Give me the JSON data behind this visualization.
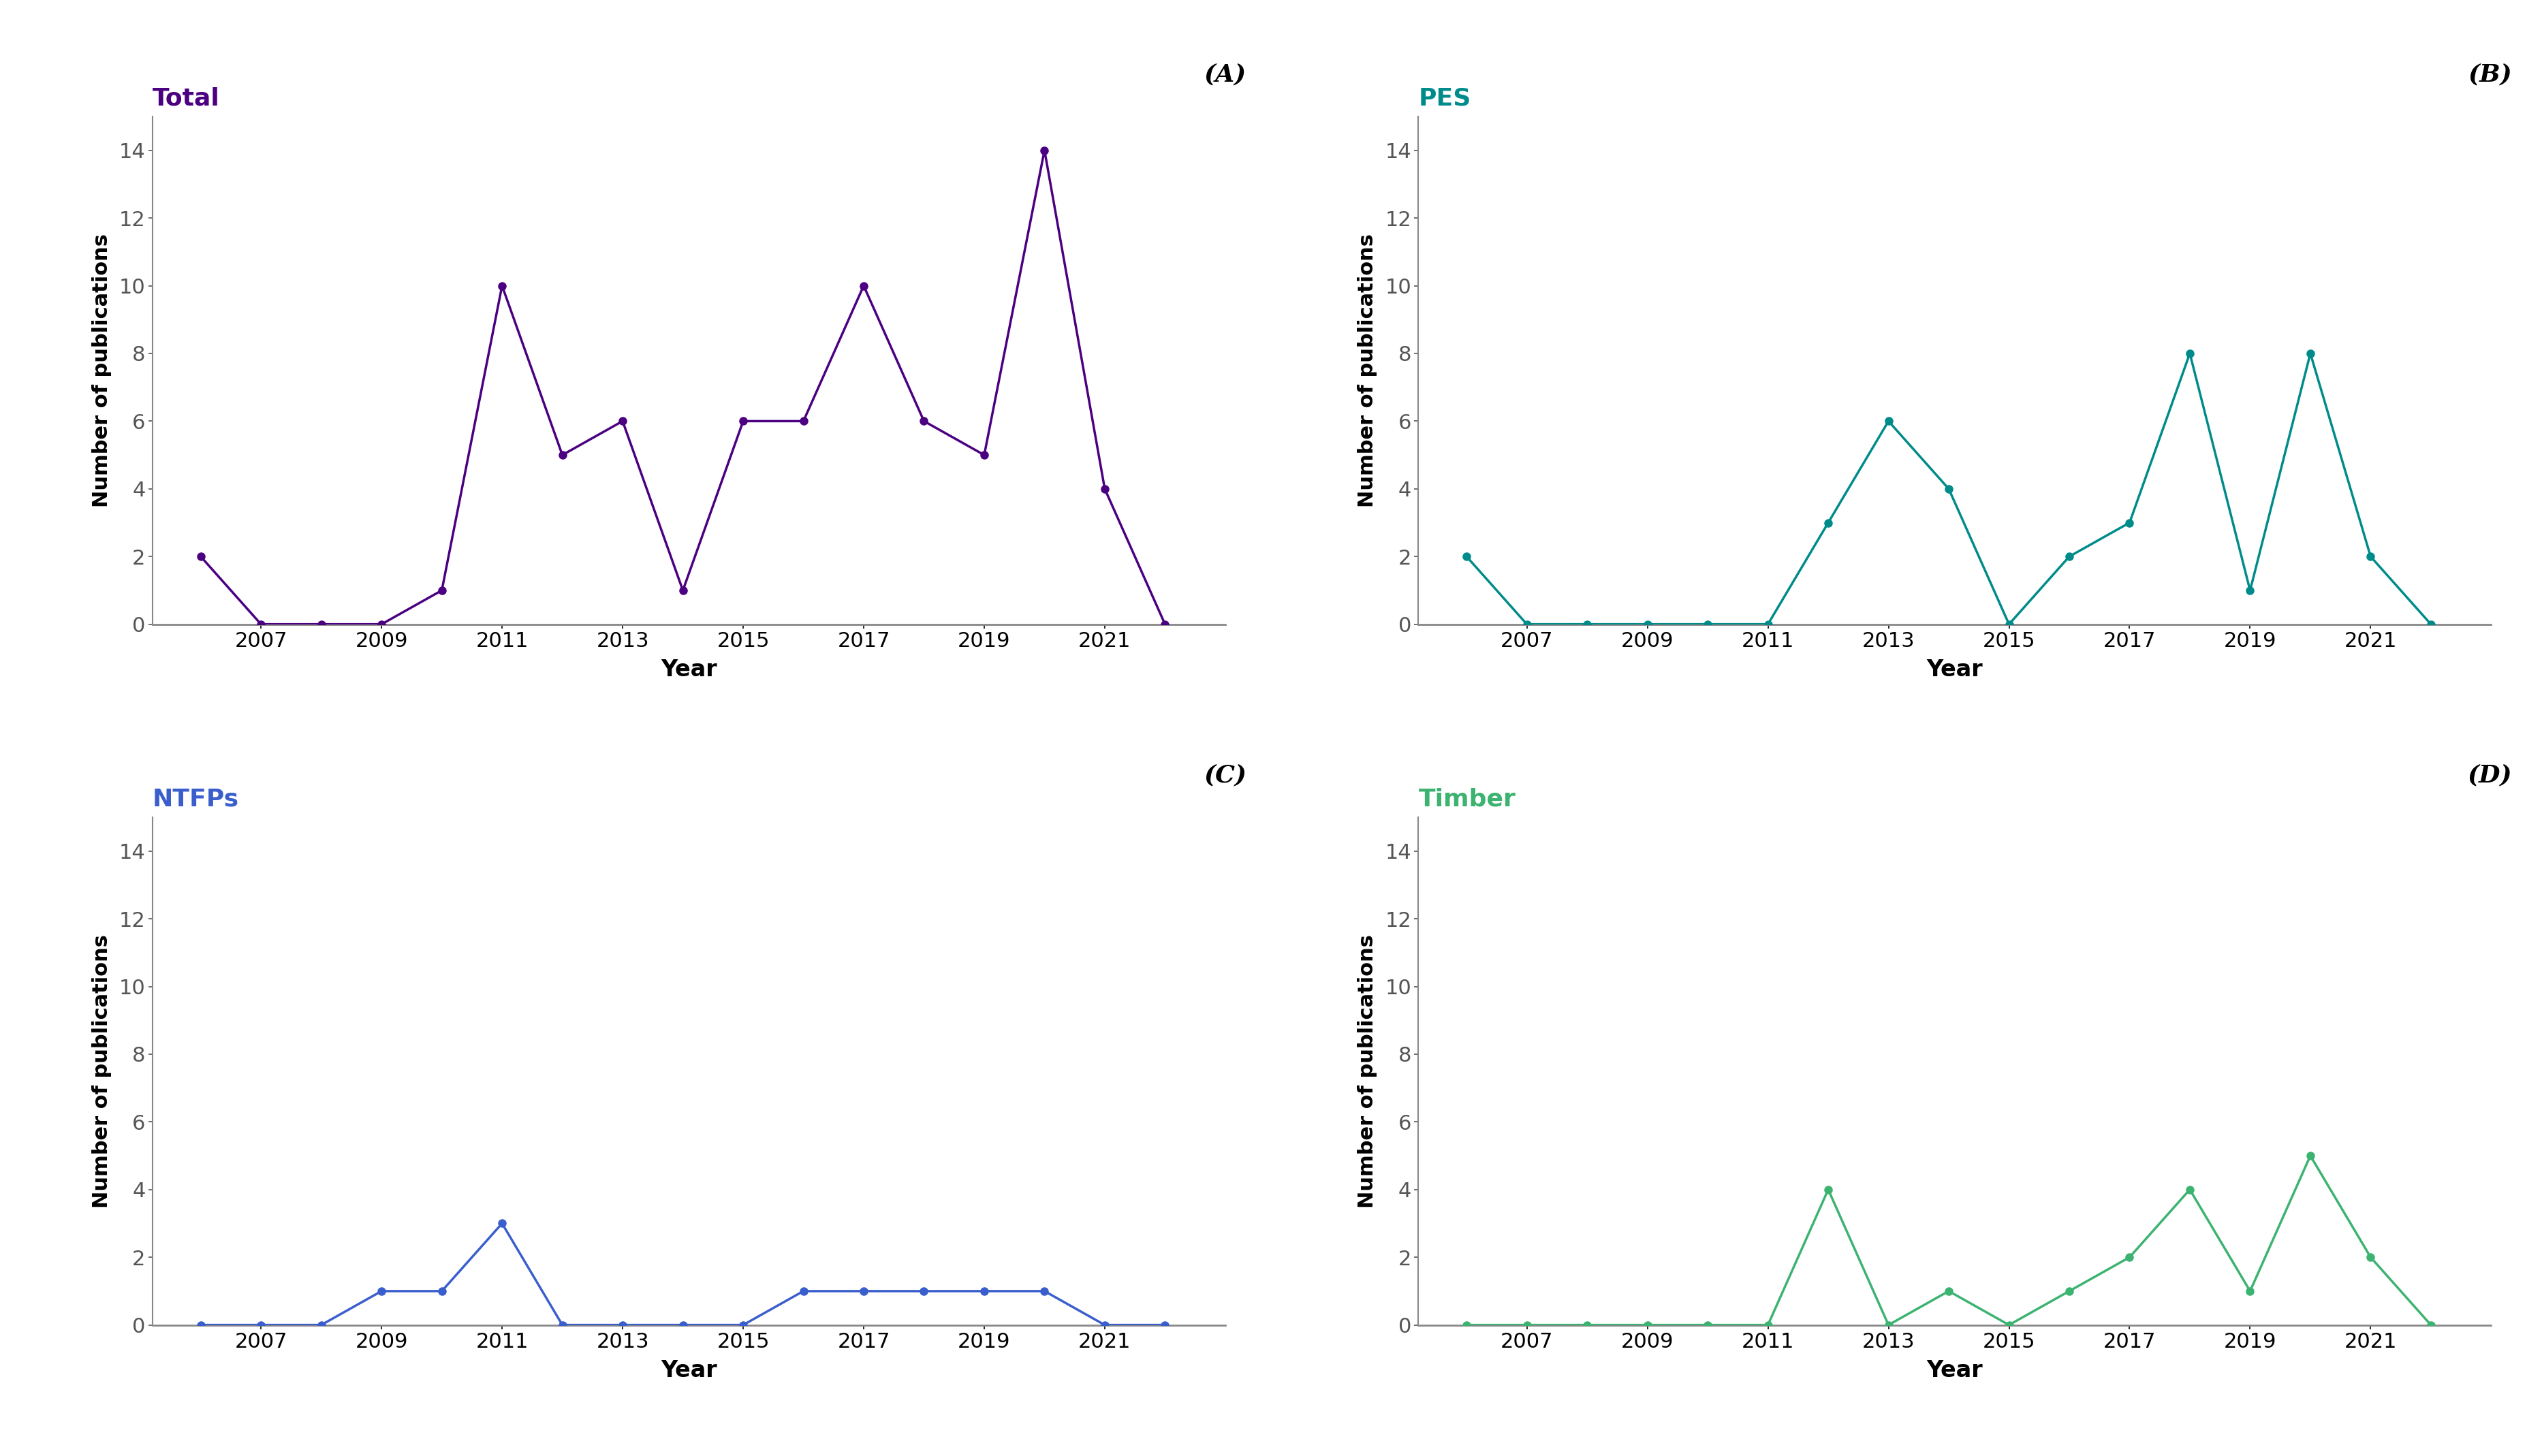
{
  "years": [
    2006,
    2007,
    2008,
    2009,
    2010,
    2011,
    2012,
    2013,
    2014,
    2015,
    2016,
    2017,
    2018,
    2019,
    2020,
    2021,
    2022
  ],
  "total": [
    2,
    0,
    0,
    0,
    1,
    10,
    5,
    6,
    1,
    6,
    6,
    10,
    6,
    5,
    14,
    4,
    0
  ],
  "pes": [
    2,
    0,
    0,
    0,
    0,
    0,
    3,
    6,
    4,
    0,
    2,
    3,
    8,
    1,
    8,
    2,
    0
  ],
  "ntfps": [
    0,
    0,
    0,
    1,
    1,
    3,
    0,
    0,
    0,
    0,
    1,
    1,
    1,
    1,
    1,
    0,
    0
  ],
  "timber": [
    0,
    0,
    0,
    0,
    0,
    0,
    4,
    0,
    1,
    0,
    1,
    2,
    4,
    1,
    5,
    2,
    0
  ],
  "total_color": "#4B0082",
  "pes_color": "#008B8B",
  "ntfps_color": "#3A5FCD",
  "timber_color": "#3CB371",
  "panel_labels": [
    "(A)",
    "(B)",
    "(C)",
    "(D)"
  ],
  "subplot_titles": [
    "Total",
    "PES",
    "NTFPs",
    "Timber"
  ],
  "ylabel": "Number of publications",
  "xlabel": "Year",
  "ylim": [
    0,
    15
  ],
  "yticks": [
    0,
    2,
    4,
    6,
    8,
    10,
    12,
    14
  ],
  "xticks": [
    2007,
    2009,
    2011,
    2013,
    2015,
    2017,
    2019,
    2021
  ],
  "background_color": "#ffffff",
  "line_width": 2.5,
  "marker_size": 8
}
